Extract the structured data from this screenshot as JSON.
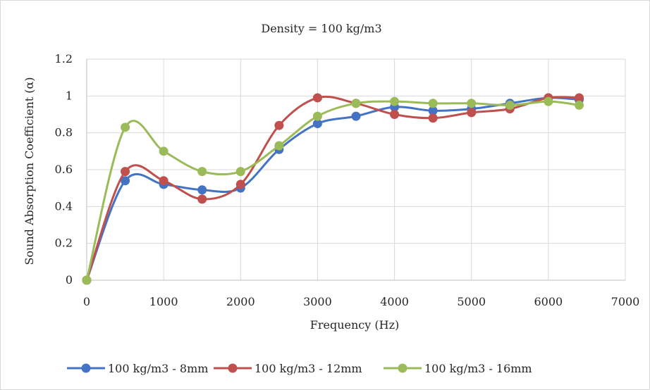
{
  "chart_data": {
    "type": "line",
    "title": "Density = 100 kg/m3",
    "xlabel": "Frequency (Hz)",
    "ylabel": "Sound Absorption Coefficient (α)",
    "xlim": [
      0,
      7000
    ],
    "ylim": [
      0,
      1.2
    ],
    "x_ticks": [
      0,
      1000,
      2000,
      3000,
      4000,
      5000,
      6000,
      7000
    ],
    "y_ticks": [
      0,
      0.2,
      0.4,
      0.6,
      0.8,
      1,
      1.2
    ],
    "grid": true,
    "legend": "bottom",
    "smooth": true,
    "series": [
      {
        "name": "100 kg/m3 - 8mm",
        "color": "#4472c4",
        "points": [
          [
            0,
            0
          ],
          [
            500,
            0.54
          ],
          [
            1000,
            0.52
          ],
          [
            1500,
            0.49
          ],
          [
            2000,
            0.5
          ],
          [
            2500,
            0.71
          ],
          [
            3000,
            0.85
          ],
          [
            3500,
            0.89
          ],
          [
            4000,
            0.94
          ],
          [
            4500,
            0.92
          ],
          [
            5000,
            0.93
          ],
          [
            5500,
            0.96
          ],
          [
            6000,
            0.99
          ],
          [
            6400,
            0.98
          ]
        ]
      },
      {
        "name": "100 kg/m3 - 12mm",
        "color": "#c0504d",
        "points": [
          [
            0,
            0
          ],
          [
            500,
            0.59
          ],
          [
            1000,
            0.54
          ],
          [
            1500,
            0.44
          ],
          [
            2000,
            0.52
          ],
          [
            2500,
            0.84
          ],
          [
            3000,
            0.99
          ],
          [
            3500,
            0.96
          ],
          [
            4000,
            0.9
          ],
          [
            4500,
            0.88
          ],
          [
            5000,
            0.91
          ],
          [
            5500,
            0.93
          ],
          [
            6000,
            0.99
          ],
          [
            6400,
            0.99
          ]
        ]
      },
      {
        "name": "100 kg/m3 - 16mm",
        "color": "#9bbb59",
        "points": [
          [
            0,
            0
          ],
          [
            500,
            0.83
          ],
          [
            1000,
            0.7
          ],
          [
            1500,
            0.59
          ],
          [
            2000,
            0.59
          ],
          [
            2500,
            0.73
          ],
          [
            3000,
            0.89
          ],
          [
            3500,
            0.96
          ],
          [
            4000,
            0.97
          ],
          [
            4500,
            0.96
          ],
          [
            5000,
            0.96
          ],
          [
            5500,
            0.95
          ],
          [
            6000,
            0.97
          ],
          [
            6400,
            0.95
          ]
        ]
      }
    ]
  }
}
